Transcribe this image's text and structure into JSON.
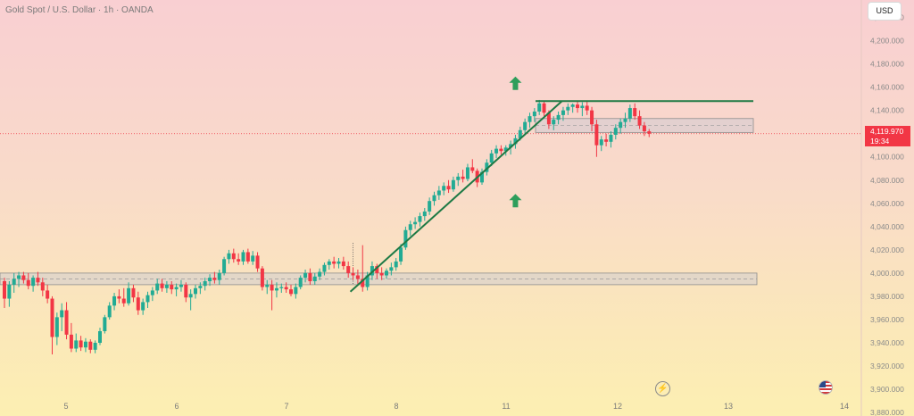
{
  "header": {
    "title": "Gold Spot / U.S. Dollar · 1h · OANDA"
  },
  "toolbar": {
    "currency": "USD"
  },
  "price_label": {
    "value": "4,119.970",
    "countdown": "19:34"
  },
  "icons": {
    "lightning": "lightning-icon",
    "flag": "us-flag-icon",
    "arrow": "arrow-up-icon"
  },
  "colors": {
    "up": "#22ab94",
    "down": "#f23645",
    "trendline": "#1e7a45",
    "arrow": "#2e9e5b"
  },
  "chart_data": {
    "type": "candlestick",
    "symbol": "Gold Spot / U.S. Dollar",
    "interval": "1h",
    "source": "OANDA",
    "y_ticks": [
      "4,220.000",
      "4,200.000",
      "4,180.000",
      "4,160.000",
      "4,140.000",
      "4,120.000",
      "4,100.000",
      "4,080.000",
      "4,060.000",
      "4,040.000",
      "4,020.000",
      "4,000.000",
      "3,980.000",
      "3,960.000",
      "3,940.000",
      "3,920.000",
      "3,900.000",
      "3,880.000"
    ],
    "ylim": [
      3877,
      4235
    ],
    "x_ticks": [
      "5",
      "6",
      "7",
      "8",
      "11",
      "12",
      "13",
      "14"
    ],
    "current_price": 4119.97,
    "candles": [
      [
        3993,
        3996,
        3970,
        3978
      ],
      [
        3978,
        3993,
        3971,
        3990
      ],
      [
        3990,
        4000,
        3983,
        3995
      ],
      [
        3995,
        4001,
        3988,
        3998
      ],
      [
        3998,
        4001,
        3991,
        3994
      ],
      [
        3994,
        4000,
        3986,
        3989
      ],
      [
        3989,
        3998,
        3984,
        3996
      ],
      [
        3996,
        4001,
        3989,
        3992
      ],
      [
        3992,
        3996,
        3980,
        3985
      ],
      [
        3985,
        3990,
        3974,
        3978
      ],
      [
        3978,
        3980,
        3930,
        3945
      ],
      [
        3945,
        3966,
        3938,
        3962
      ],
      [
        3962,
        3974,
        3950,
        3968
      ],
      [
        3968,
        3975,
        3943,
        3947
      ],
      [
        3947,
        3957,
        3932,
        3935
      ],
      [
        3935,
        3948,
        3932,
        3942
      ],
      [
        3942,
        3946,
        3933,
        3936
      ],
      [
        3936,
        3944,
        3932,
        3941
      ],
      [
        3941,
        3943,
        3931,
        3934
      ],
      [
        3934,
        3942,
        3931,
        3940
      ],
      [
        3940,
        3953,
        3938,
        3950
      ],
      [
        3950,
        3964,
        3948,
        3962
      ],
      [
        3962,
        3975,
        3960,
        3972
      ],
      [
        3972,
        3983,
        3968,
        3980
      ],
      [
        3980,
        3986,
        3974,
        3978
      ],
      [
        3978,
        3987,
        3971,
        3974
      ],
      [
        3974,
        3992,
        3972,
        3987
      ],
      [
        3987,
        3990,
        3975,
        3979
      ],
      [
        3979,
        3984,
        3964,
        3968
      ],
      [
        3968,
        3978,
        3964,
        3975
      ],
      [
        3975,
        3984,
        3970,
        3981
      ],
      [
        3981,
        3988,
        3976,
        3985
      ],
      [
        3985,
        3995,
        3982,
        3991
      ],
      [
        3991,
        3995,
        3984,
        3987
      ],
      [
        3987,
        3993,
        3983,
        3990
      ],
      [
        3990,
        3993,
        3982,
        3986
      ],
      [
        3986,
        3991,
        3980,
        3988
      ],
      [
        3988,
        3994,
        3984,
        3990
      ],
      [
        3990,
        3992,
        3975,
        3979
      ],
      [
        3979,
        3986,
        3968,
        3982
      ],
      [
        3982,
        3990,
        3978,
        3987
      ],
      [
        3987,
        3992,
        3982,
        3989
      ],
      [
        3989,
        3996,
        3985,
        3993
      ],
      [
        3993,
        3999,
        3989,
        3996
      ],
      [
        3996,
        4001,
        3991,
        3994
      ],
      [
        3994,
        4003,
        3990,
        4000
      ],
      [
        4000,
        4014,
        3998,
        4012
      ],
      [
        4012,
        4020,
        4008,
        4017
      ],
      [
        4017,
        4021,
        4009,
        4012
      ],
      [
        4012,
        4017,
        4007,
        4010
      ],
      [
        4010,
        4020,
        4007,
        4018
      ],
      [
        4018,
        4021,
        4008,
        4010
      ],
      [
        4010,
        4019,
        4007,
        4015
      ],
      [
        4015,
        4018,
        4001,
        4004
      ],
      [
        4004,
        4006,
        3985,
        3988
      ],
      [
        3988,
        3994,
        3982,
        3990
      ],
      [
        3990,
        3994,
        3968,
        3985
      ],
      [
        3985,
        3992,
        3979,
        3987
      ],
      [
        3987,
        3991,
        3983,
        3988
      ],
      [
        3988,
        3992,
        3983,
        3986
      ],
      [
        3986,
        3990,
        3980,
        3982
      ],
      [
        3982,
        3991,
        3978,
        3988
      ],
      [
        3988,
        3998,
        3986,
        3996
      ],
      [
        3996,
        4003,
        3992,
        4000
      ],
      [
        4000,
        4004,
        3990,
        3993
      ],
      [
        3993,
        4000,
        3990,
        3997
      ],
      [
        3997,
        4004,
        3994,
        4001
      ],
      [
        4001,
        4009,
        3998,
        4007
      ],
      [
        4007,
        4012,
        4003,
        4010
      ],
      [
        4010,
        4014,
        4004,
        4008
      ],
      [
        4008,
        4013,
        4004,
        4010
      ],
      [
        4010,
        4014,
        4003,
        4006
      ],
      [
        4006,
        4010,
        3996,
        4000
      ],
      [
        4000,
        4005,
        3994,
        3998
      ],
      [
        3998,
        4003,
        3990,
        3995
      ],
      [
        3995,
        4024,
        3984,
        3988
      ],
      [
        3988,
        4001,
        3985,
        3998
      ],
      [
        3998,
        4010,
        3994,
        4006
      ],
      [
        4006,
        4008,
        3995,
        4000
      ],
      [
        4000,
        4005,
        3994,
        3998
      ],
      [
        3998,
        4004,
        3995,
        4002
      ],
      [
        4002,
        4009,
        3998,
        4005
      ],
      [
        4005,
        4013,
        4002,
        4010
      ],
      [
        4010,
        4025,
        4007,
        4022
      ],
      [
        4022,
        4040,
        4020,
        4037
      ],
      [
        4037,
        4045,
        4032,
        4042
      ],
      [
        4042,
        4048,
        4038,
        4044
      ],
      [
        4044,
        4052,
        4040,
        4049
      ],
      [
        4049,
        4056,
        4045,
        4053
      ],
      [
        4053,
        4065,
        4050,
        4062
      ],
      [
        4062,
        4070,
        4058,
        4067
      ],
      [
        4067,
        4075,
        4063,
        4071
      ],
      [
        4071,
        4078,
        4067,
        4075
      ],
      [
        4075,
        4080,
        4069,
        4072
      ],
      [
        4072,
        4083,
        4070,
        4080
      ],
      [
        4080,
        4086,
        4075,
        4083
      ],
      [
        4083,
        4089,
        4078,
        4081
      ],
      [
        4081,
        4094,
        4079,
        4091
      ],
      [
        4091,
        4098,
        4086,
        4088
      ],
      [
        4088,
        4090,
        4074,
        4078
      ],
      [
        4078,
        4090,
        4076,
        4087
      ],
      [
        4087,
        4098,
        4084,
        4095
      ],
      [
        4095,
        4106,
        4092,
        4103
      ],
      [
        4103,
        4110,
        4099,
        4107
      ],
      [
        4107,
        4110,
        4102,
        4105
      ],
      [
        4105,
        4110,
        4101,
        4108
      ],
      [
        4108,
        4114,
        4102,
        4111
      ],
      [
        4111,
        4119,
        4107,
        4116
      ],
      [
        4116,
        4126,
        4114,
        4123
      ],
      [
        4123,
        4133,
        4120,
        4130
      ],
      [
        4130,
        4138,
        4125,
        4135
      ],
      [
        4135,
        4142,
        4130,
        4139
      ],
      [
        4139,
        4149,
        4136,
        4146
      ],
      [
        4146,
        4148,
        4135,
        4138
      ],
      [
        4138,
        4140,
        4124,
        4128
      ],
      [
        4128,
        4135,
        4123,
        4132
      ],
      [
        4132,
        4139,
        4128,
        4136
      ],
      [
        4136,
        4143,
        4131,
        4140
      ],
      [
        4140,
        4146,
        4136,
        4143
      ],
      [
        4143,
        4146,
        4138,
        4145
      ],
      [
        4145,
        4148,
        4138,
        4142
      ],
      [
        4142,
        4147,
        4135,
        4144
      ],
      [
        4144,
        4148,
        4136,
        4140
      ],
      [
        4140,
        4143,
        4122,
        4128
      ],
      [
        4128,
        4132,
        4100,
        4110
      ],
      [
        4110,
        4118,
        4105,
        4115
      ],
      [
        4115,
        4120,
        4109,
        4113
      ],
      [
        4113,
        4122,
        4108,
        4119
      ],
      [
        4119,
        4128,
        4115,
        4125
      ],
      [
        4125,
        4133,
        4120,
        4130
      ],
      [
        4130,
        4138,
        4125,
        4133
      ],
      [
        4133,
        4145,
        4130,
        4142
      ],
      [
        4142,
        4146,
        4132,
        4135
      ],
      [
        4135,
        4140,
        4124,
        4127
      ],
      [
        4127,
        4130,
        4118,
        4122
      ],
      [
        4122,
        4124,
        4117,
        4120
      ]
    ],
    "annotations": {
      "upper_zone": [
        4121,
        4133
      ],
      "lower_zone": [
        3990,
        4000
      ],
      "resistance_line": 4148,
      "trendline": {
        "from_candle": 73,
        "from_price": 3984,
        "to_candle": 116,
        "to_price": 4148
      },
      "arrows": [
        {
          "candle": 107,
          "price": 4163
        },
        {
          "candle": 107,
          "price": 4062
        }
      ],
      "vertical_marker": {
        "candle": 73,
        "top": 4026,
        "bottom": 3990
      }
    }
  }
}
